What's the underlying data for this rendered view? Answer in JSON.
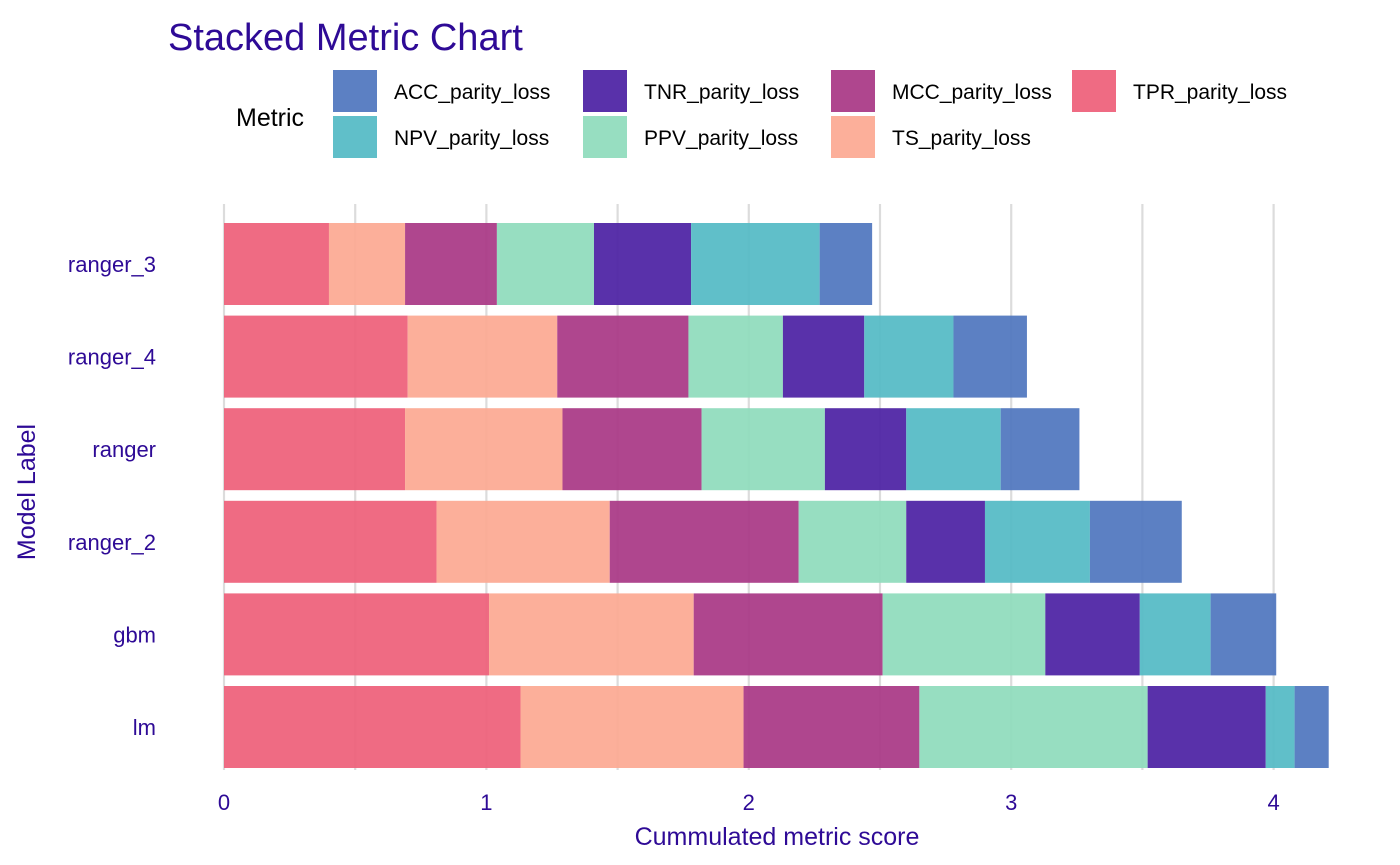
{
  "chart_data": {
    "type": "bar",
    "orientation": "horizontal",
    "stacked": true,
    "title": "Stacked Metric Chart",
    "xlabel": "Cummulated metric score",
    "ylabel": "Model Label",
    "xlim": [
      0,
      4.2
    ],
    "x_ticks": [
      "0",
      "1",
      "2",
      "3",
      "4"
    ],
    "grid": true,
    "legend": {
      "title": "Metric",
      "position": "top"
    },
    "categories": [
      "ranger_3",
      "ranger_4",
      "ranger",
      "ranger_2",
      "gbm",
      "lm"
    ],
    "series": [
      {
        "name": "TPR_parity_loss",
        "color": "#ee5e78",
        "values": [
          0.4,
          0.7,
          0.69,
          0.81,
          1.01,
          1.13
        ]
      },
      {
        "name": "TS_parity_loss",
        "color": "#fca891",
        "values": [
          0.29,
          0.57,
          0.6,
          0.66,
          0.78,
          0.85
        ]
      },
      {
        "name": "MCC_parity_loss",
        "color": "#a83684",
        "values": [
          0.35,
          0.5,
          0.53,
          0.72,
          0.72,
          0.67
        ]
      },
      {
        "name": "PPV_parity_loss",
        "color": "#8edbbc",
        "values": [
          0.37,
          0.36,
          0.47,
          0.41,
          0.62,
          0.87
        ]
      },
      {
        "name": "TNR_parity_loss",
        "color": "#4b20a3",
        "values": [
          0.37,
          0.31,
          0.31,
          0.3,
          0.36,
          0.45
        ]
      },
      {
        "name": "NPV_parity_loss",
        "color": "#52bac4",
        "values": [
          0.49,
          0.34,
          0.36,
          0.4,
          0.27,
          0.11
        ]
      },
      {
        "name": "ACC_parity_loss",
        "color": "#4e75be",
        "values": [
          0.2,
          0.28,
          0.3,
          0.35,
          0.25,
          0.13
        ]
      }
    ],
    "legend_order": [
      "ACC_parity_loss",
      "NPV_parity_loss",
      "TNR_parity_loss",
      "PPV_parity_loss",
      "MCC_parity_loss",
      "TS_parity_loss",
      "TPR_parity_loss"
    ],
    "colors": {
      "text": "#2e0a96",
      "grid": "#dcdcdc"
    }
  }
}
